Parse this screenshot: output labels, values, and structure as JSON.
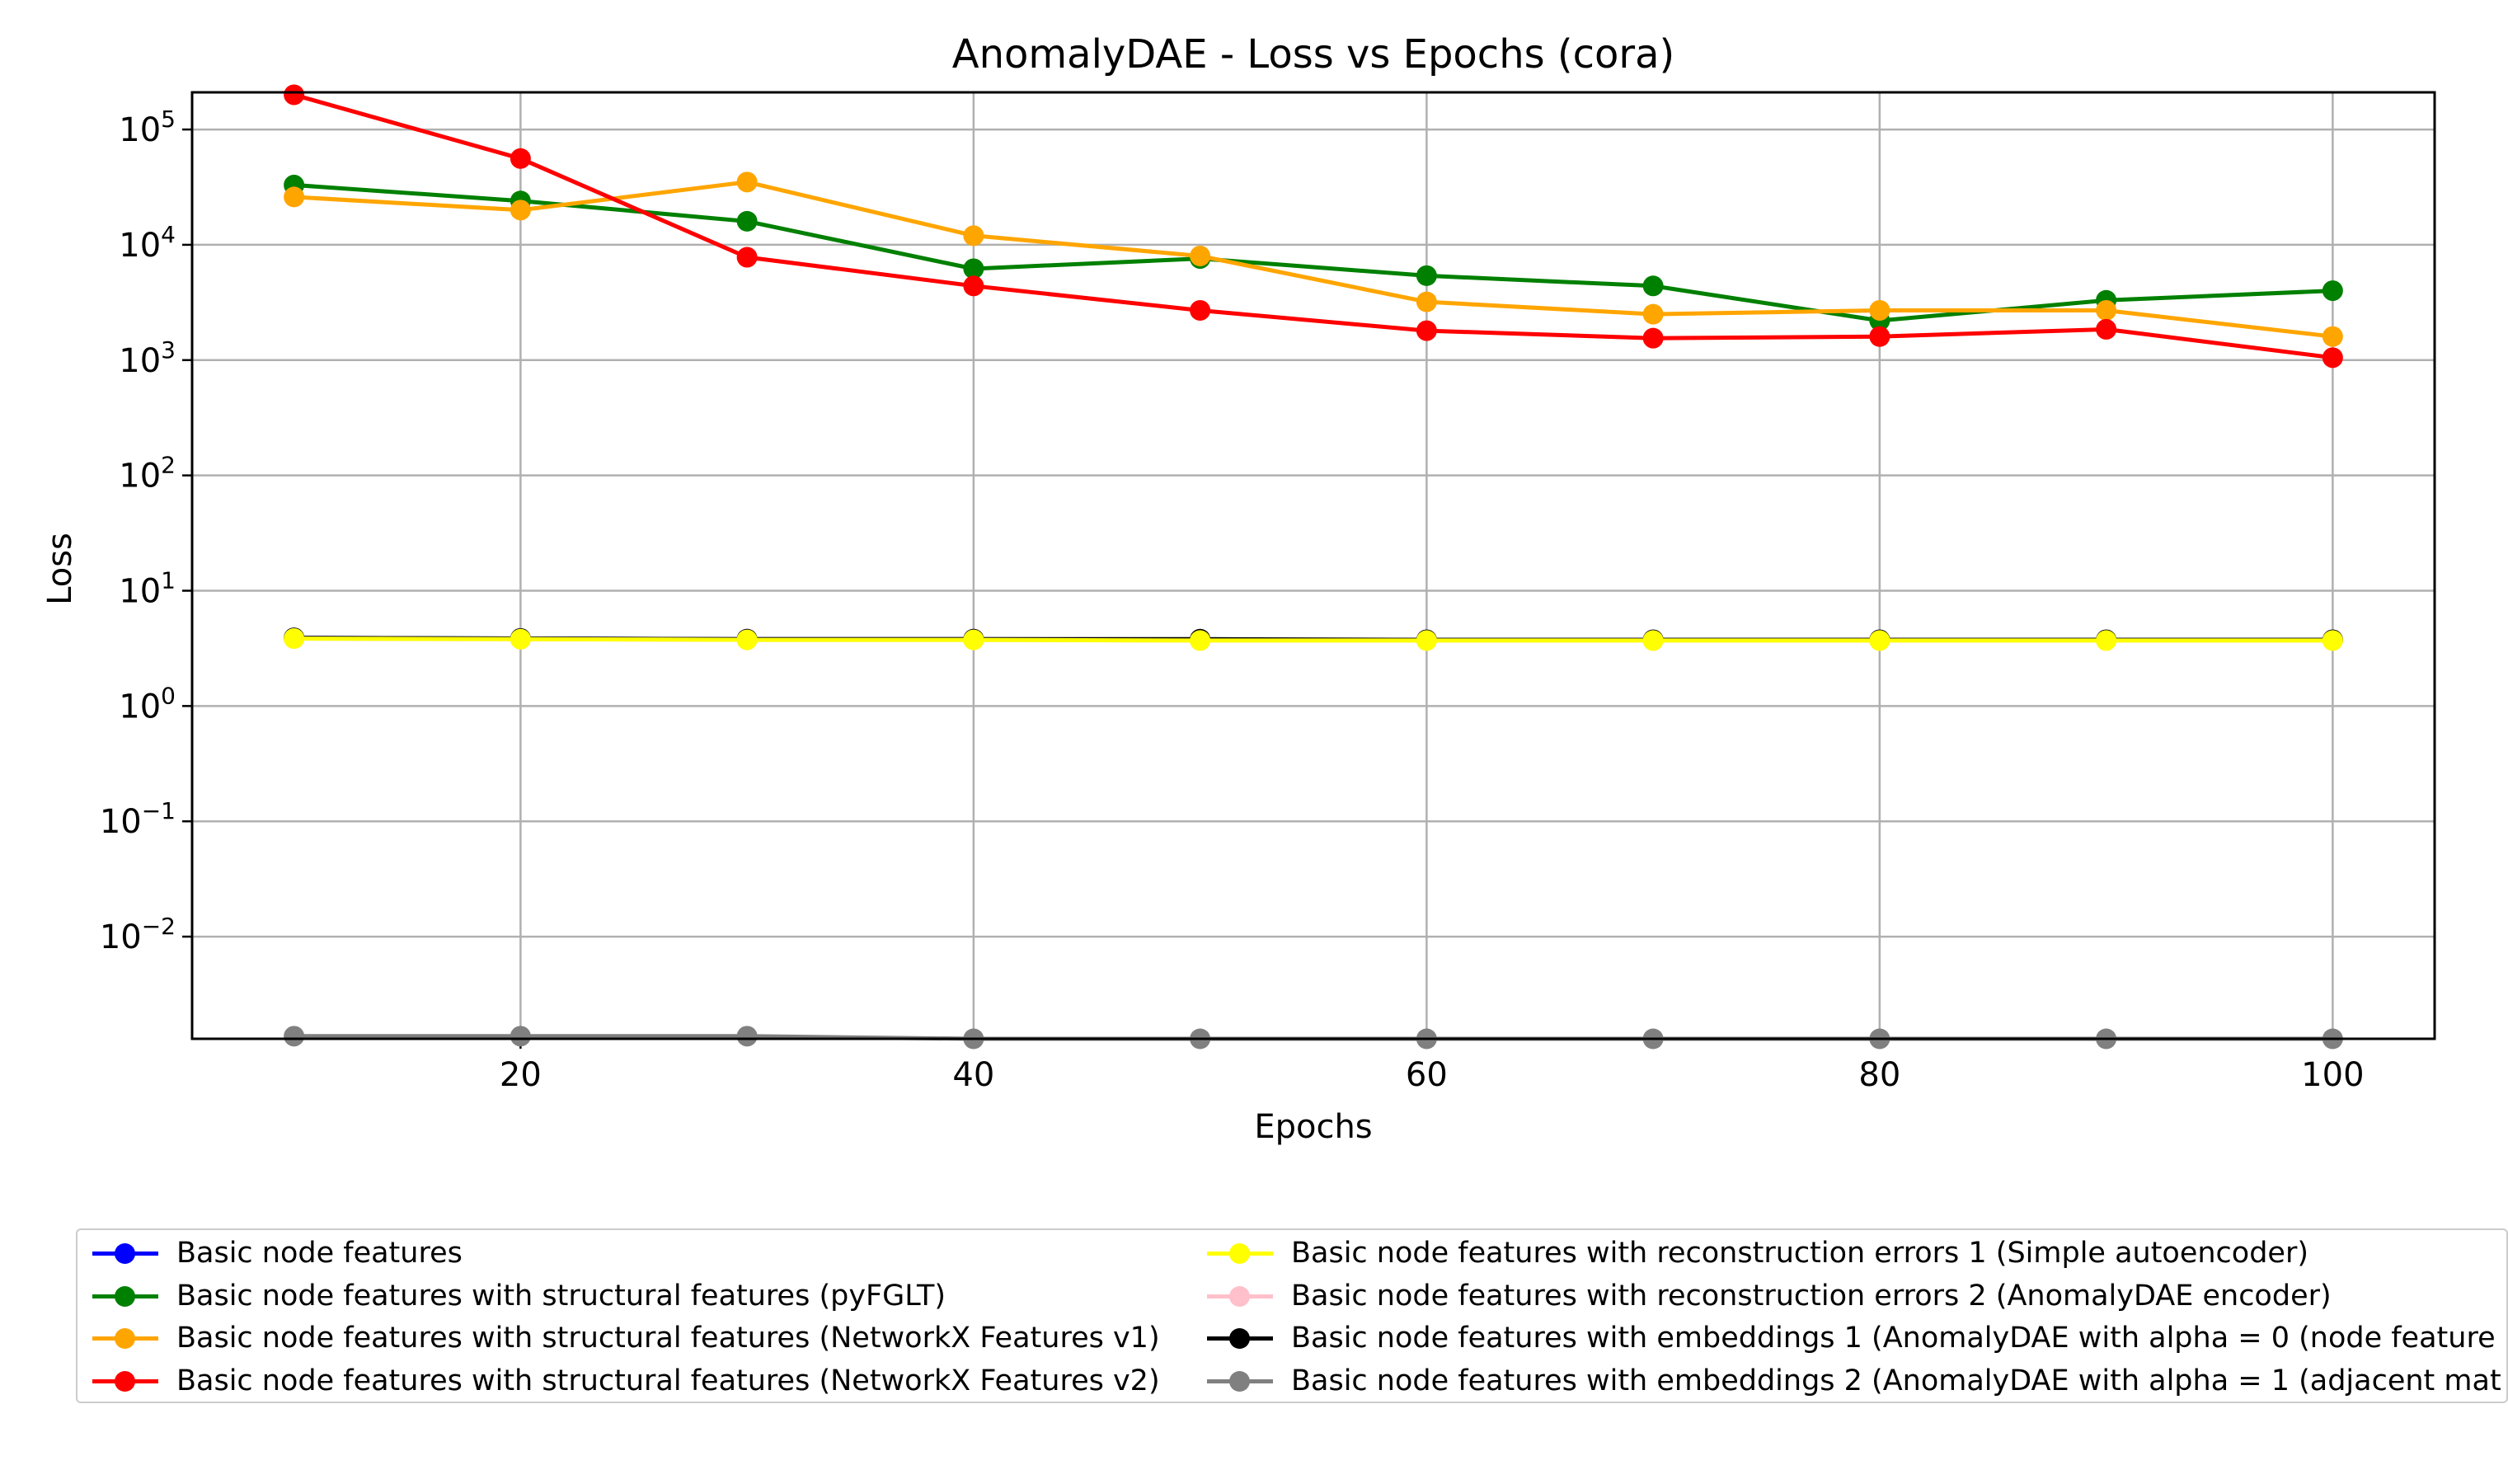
{
  "chart_data": {
    "type": "line",
    "title": "AnomalyDAE - Loss vs Epochs (cora)",
    "xlabel": "Epochs",
    "ylabel": "Loss",
    "yscale": "log",
    "x": [
      10,
      20,
      30,
      40,
      50,
      60,
      70,
      80,
      90,
      100
    ],
    "xlim": [
      5.5,
      104.5
    ],
    "ylim": [
      0.0013,
      210000
    ],
    "xticks": [
      20,
      40,
      60,
      80,
      100
    ],
    "yticks": [
      {
        "value": 100000,
        "base": "10",
        "exp": "5"
      },
      {
        "value": 10000,
        "base": "10",
        "exp": "4"
      },
      {
        "value": 1000,
        "base": "10",
        "exp": "3"
      },
      {
        "value": 100,
        "base": "10",
        "exp": "2"
      },
      {
        "value": 10,
        "base": "10",
        "exp": "1"
      },
      {
        "value": 1,
        "base": "10",
        "exp": "0"
      },
      {
        "value": 0.1,
        "base": "10",
        "exp": "−1"
      },
      {
        "value": 0.01,
        "base": "10",
        "exp": "−2"
      }
    ],
    "grid": true,
    "legend_position": "below",
    "series": [
      {
        "name": "Basic node features",
        "color": "#0000ff",
        "values": [
          3.9,
          3.85,
          3.8,
          3.8,
          3.75,
          3.75,
          3.75,
          3.75,
          3.75,
          3.75
        ]
      },
      {
        "name": "Basic node features with structural features (pyFGLT)",
        "color": "#008000",
        "values": [
          33000,
          24000,
          16000,
          6200,
          7600,
          5400,
          4400,
          2200,
          3300,
          4000
        ]
      },
      {
        "name": "Basic node features with structural features (NetworkX Features v1)",
        "color": "#ffa500",
        "values": [
          26000,
          20000,
          35000,
          12000,
          8000,
          3200,
          2500,
          2700,
          2700,
          1600
        ]
      },
      {
        "name": "Basic node features with structural features (NetworkX Features v2)",
        "color": "#ff0000",
        "values": [
          200000,
          56000,
          7800,
          4400,
          2700,
          1800,
          1550,
          1600,
          1850,
          1050
        ]
      },
      {
        "name": "Basic node features with reconstruction errors 1 (Simple autoencoder)",
        "color": "#ffff00",
        "values": [
          3.85,
          3.8,
          3.75,
          3.75,
          3.7,
          3.7,
          3.7,
          3.7,
          3.7,
          3.7
        ]
      },
      {
        "name": "Basic node features with reconstruction errors 2 (AnomalyDAE encoder)",
        "color": "#ffc0cb",
        "values": [
          3.85,
          3.8,
          3.75,
          3.75,
          3.7,
          3.7,
          3.7,
          3.7,
          3.7,
          3.7
        ]
      },
      {
        "name": "Basic node features with embeddings 1 (AnomalyDAE with alpha = 0 (node feature",
        "color": "#000000",
        "values": [
          3.9,
          3.85,
          3.8,
          3.8,
          3.8,
          3.75,
          3.75,
          3.75,
          3.75,
          3.75
        ]
      },
      {
        "name": "Basic node features with embeddings 2 (AnomalyDAE with alpha = 1 (adjacent mat",
        "color": "#808080",
        "values": [
          0.00137,
          0.00137,
          0.00137,
          0.0013,
          0.0013,
          0.0013,
          0.0013,
          0.0013,
          0.0013,
          0.0013
        ]
      }
    ],
    "draw_order": [
      0,
      1,
      2,
      3,
      5,
      6,
      7,
      4
    ]
  }
}
